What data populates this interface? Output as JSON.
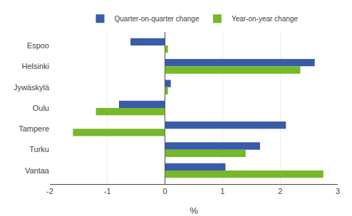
{
  "chart_data": {
    "type": "bar",
    "orientation": "horizontal",
    "categories": [
      "Vantaa",
      "Turku",
      "Tampere",
      "Oulu",
      "Jywäskylä",
      "Helsinki",
      "Espoo"
    ],
    "series": [
      {
        "name": "Quarter-on-quarter change",
        "color": "#3A5CA8",
        "values": [
          1.05,
          1.65,
          2.1,
          -0.8,
          0.1,
          2.6,
          -0.6
        ]
      },
      {
        "name": "Year-on-year change",
        "color": "#76B82A",
        "values": [
          2.75,
          1.4,
          -1.6,
          -1.2,
          0.05,
          2.35,
          0.05
        ]
      }
    ],
    "xlabel": "%",
    "xlim": [
      -2,
      3
    ],
    "xticks": [
      -2,
      -1,
      0,
      1,
      2,
      3
    ],
    "grid": true,
    "legend": "top"
  }
}
